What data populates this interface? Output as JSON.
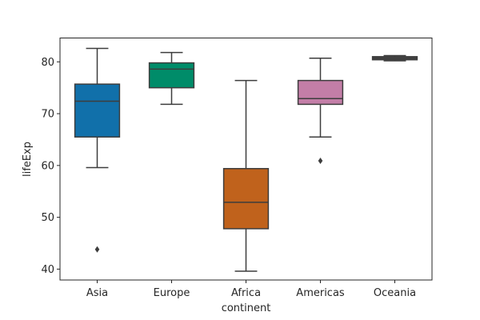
{
  "chart_data": {
    "type": "box",
    "title": "",
    "xlabel": "continent",
    "ylabel": "lifeExp",
    "ylim": [
      37.9,
      84.6
    ],
    "yticks": [
      40,
      50,
      60,
      70,
      80
    ],
    "grid": false,
    "categories": [
      "Asia",
      "Europe",
      "Africa",
      "Americas",
      "Oceania"
    ],
    "boxes": [
      {
        "category": "Asia",
        "whisker_low": 59.6,
        "q1": 65.5,
        "median": 72.4,
        "q3": 75.7,
        "whisker_high": 82.6,
        "outliers": [
          43.8
        ],
        "color": "#1170aa"
      },
      {
        "category": "Europe",
        "whisker_low": 71.8,
        "q1": 75.0,
        "median": 78.6,
        "q3": 79.8,
        "whisker_high": 81.8,
        "outliers": [],
        "color": "#008c69"
      },
      {
        "category": "Africa",
        "whisker_low": 39.6,
        "q1": 47.8,
        "median": 52.9,
        "q3": 59.4,
        "whisker_high": 76.4,
        "outliers": [],
        "color": "#c0621c"
      },
      {
        "category": "Americas",
        "whisker_low": 65.5,
        "q1": 71.8,
        "median": 72.9,
        "q3": 76.4,
        "whisker_high": 80.7,
        "outliers": [
          60.9
        ],
        "color": "#c37ea7"
      },
      {
        "category": "Oceania",
        "whisker_low": 80.2,
        "q1": 80.4,
        "median": 80.7,
        "q3": 81.0,
        "whisker_high": 81.2,
        "outliers": [],
        "color": "#4a4a4a"
      }
    ]
  }
}
